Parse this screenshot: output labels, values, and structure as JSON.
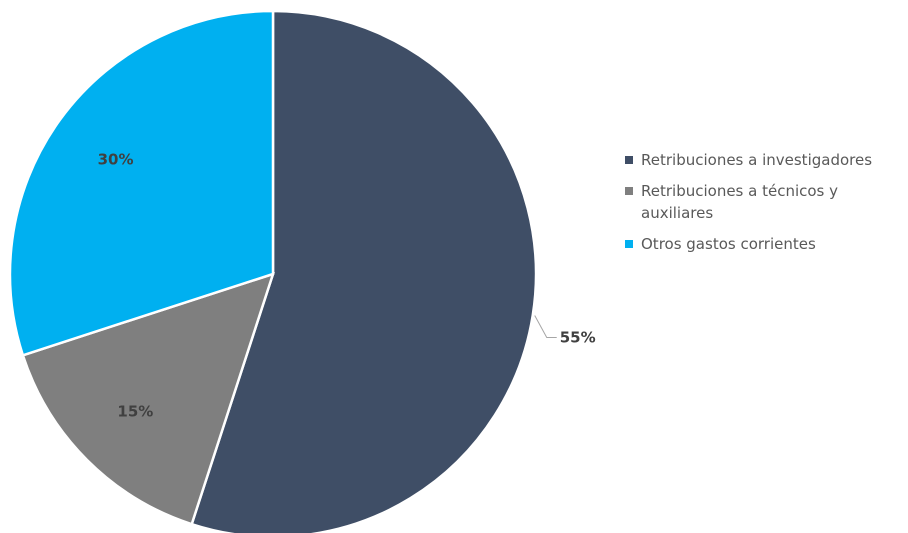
{
  "chart_data": {
    "type": "pie",
    "categories": [
      "Retribuciones a investigadores",
      "Retribuciones a técnicos y auxiliares",
      "Otros gastos corrientes"
    ],
    "values": [
      55,
      15,
      30
    ],
    "data_labels": [
      "55%",
      "15%",
      "30%"
    ],
    "colors": [
      "#3f4e66",
      "#7f7f7f",
      "#00b0f0"
    ],
    "legend_placement": "right",
    "start_angle": "top (12 o'clock), clockwise"
  },
  "legend": {
    "items": [
      {
        "label": "Retribuciones a investigadores",
        "color": "#3f4e66"
      },
      {
        "label": "Retribuciones a técnicos y auxiliares",
        "color": "#7f7f7f"
      },
      {
        "label": "Otros gastos corrientes",
        "color": "#00b0f0"
      }
    ]
  }
}
